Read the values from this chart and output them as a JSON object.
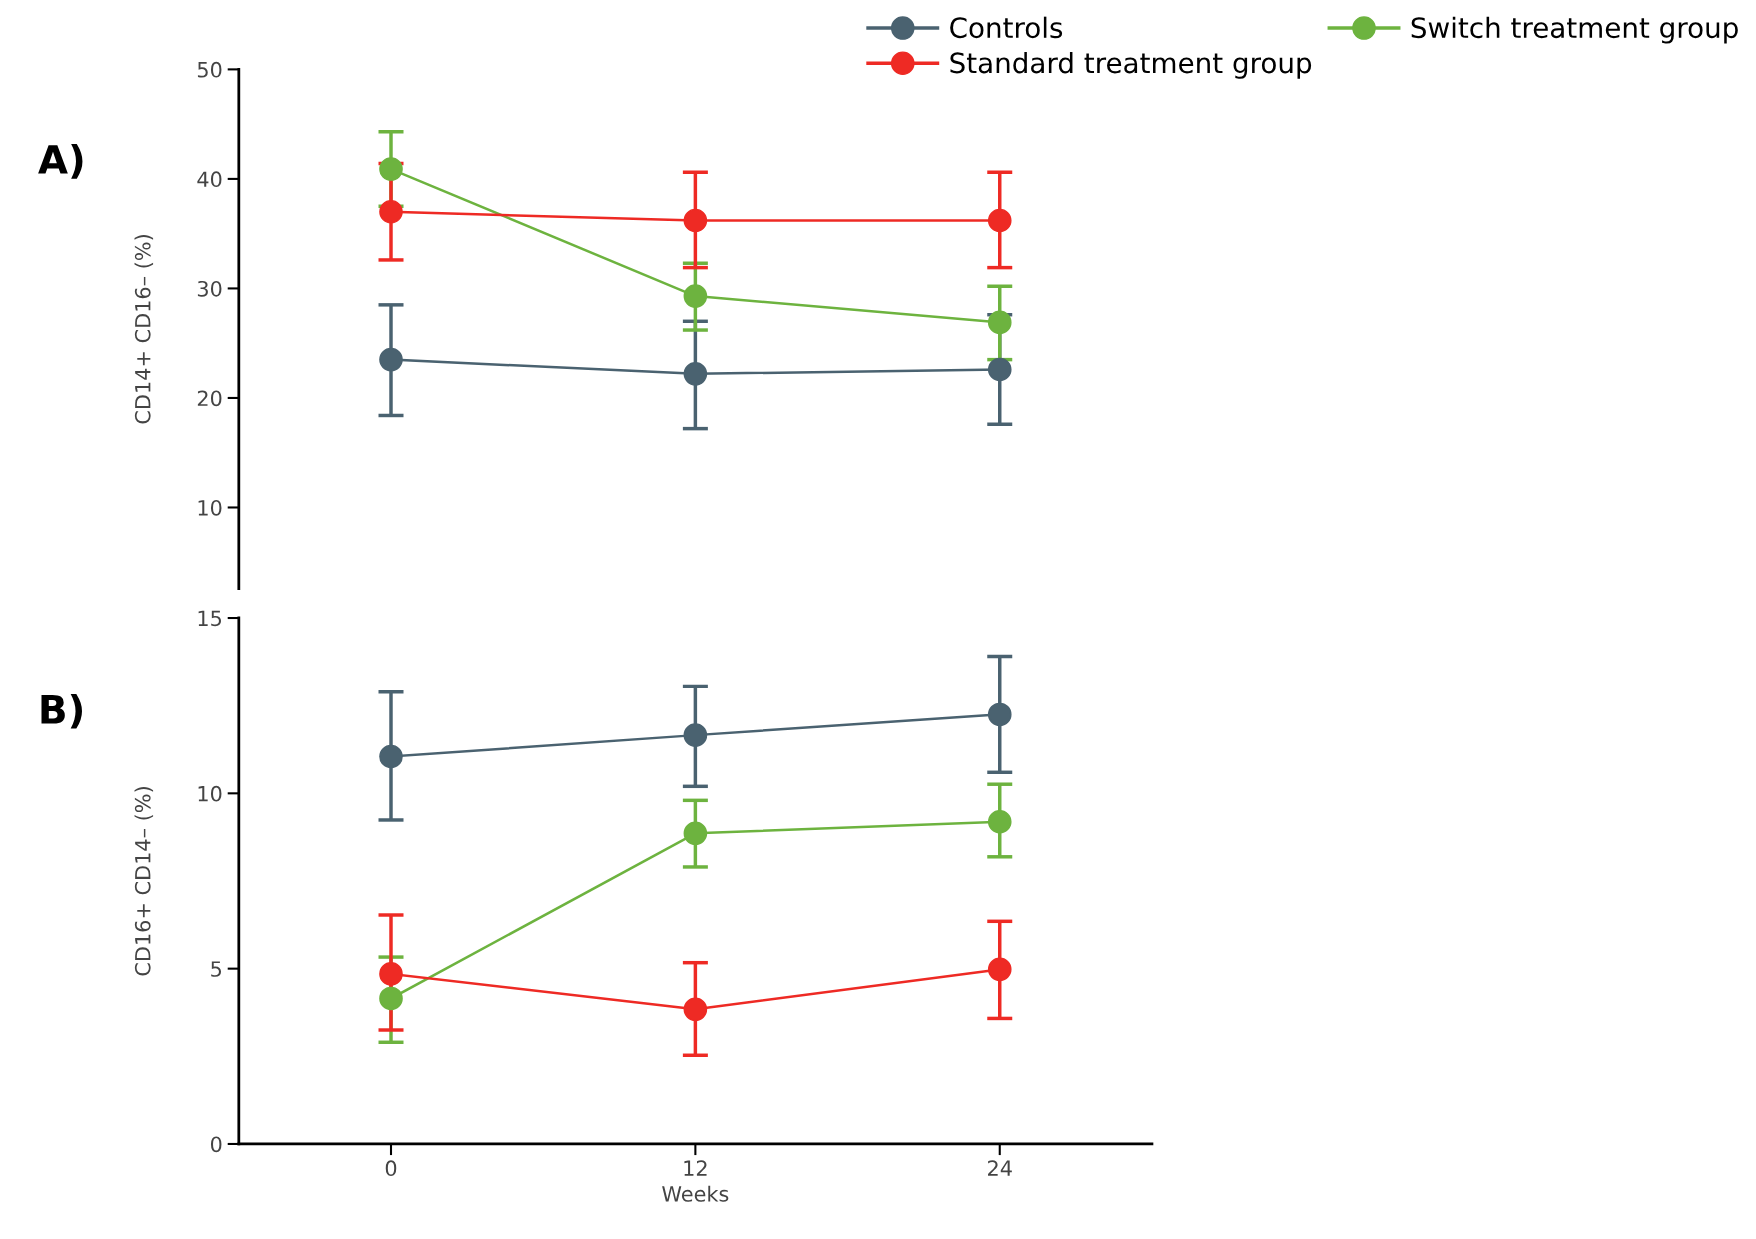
{
  "chart_data": [
    {
      "type": "line",
      "ylabel": "CD14+ CD16– (%)",
      "annotations": [
        "A)"
      ],
      "x": [
        0,
        12,
        24
      ],
      "ylim": [
        2.6,
        50
      ],
      "yticks": [
        10,
        20,
        30,
        40,
        50
      ],
      "tick_labels": "y",
      "grid": false,
      "marker": "circle",
      "legend": "top right",
      "series": [
        {
          "name": "Controls",
          "color": "#4a6270",
          "values": [
            23.5,
            22.2,
            22.6
          ],
          "errors": [
            [
              18.4,
              28.5
            ],
            [
              17.2,
              27.0
            ],
            5.0
          ]
        },
        {
          "name": "Switch treatment group",
          "color": "#6db33f",
          "values": [
            40.9,
            29.3,
            26.9
          ],
          "errors": [
            3.4,
            [
              26.2,
              32.3
            ],
            [
              23.5,
              30.2
            ]
          ]
        },
        {
          "name": "Standard treatment group",
          "color": "#ee2a24",
          "values": [
            37.0,
            36.2,
            36.2
          ],
          "errors": [
            4.4,
            [
              31.9,
              40.6
            ],
            [
              31.9,
              40.6
            ]
          ]
        }
      ]
    },
    {
      "type": "line",
      "ylabel": "CD16+ CD14– (%)",
      "xlabel": "Weeks",
      "annotations": [
        "B)"
      ],
      "x": [
        0,
        12,
        24
      ],
      "xlim": [
        -6,
        30
      ],
      "xticks": [
        0,
        12,
        24
      ],
      "ylim": [
        0,
        15
      ],
      "yticks": [
        0,
        5,
        10,
        15
      ],
      "grid": false,
      "marker": "circle",
      "series": [
        {
          "color": "#4a6270",
          "values": [
            11.05,
            11.66,
            12.25
          ],
          "errors": [
            [
              9.24,
              12.9
            ],
            [
              10.2,
              13.05
            ],
            [
              10.6,
              13.9
            ]
          ]
        },
        {
          "color": "#6db33f",
          "values": [
            4.15,
            8.86,
            9.19
          ],
          "errors": [
            [
              2.9,
              5.33
            ],
            [
              7.9,
              9.8
            ],
            [
              8.19,
              10.26
            ]
          ]
        },
        {
          "color": "#ee2a24",
          "values": [
            4.85,
            3.84,
            4.98
          ],
          "errors": [
            [
              3.25,
              6.53
            ],
            [
              2.53,
              5.17
            ],
            [
              3.58,
              6.35
            ]
          ]
        }
      ]
    }
  ]
}
